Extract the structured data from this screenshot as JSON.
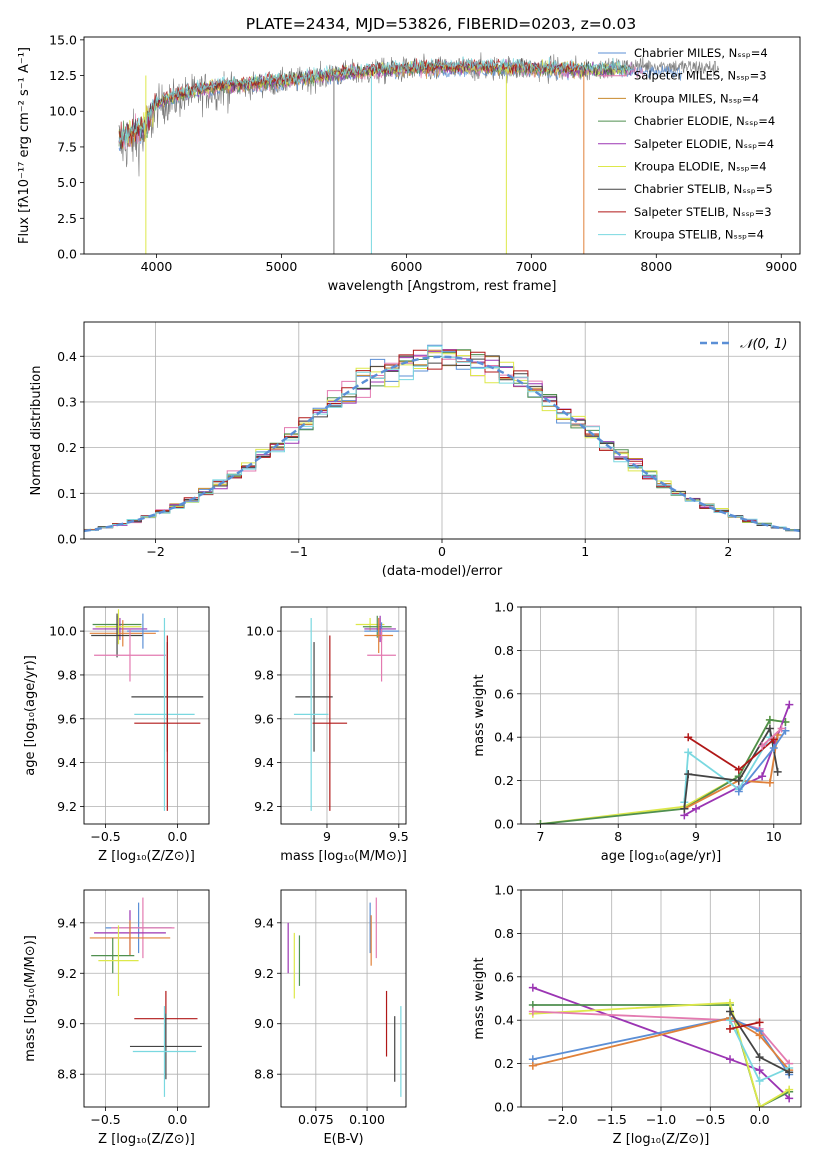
{
  "figure": {
    "title": "PLATE=2434, MJD=53826, FIBERID=0203, z=0.03"
  },
  "chart_data": [
    {
      "id": "spectrum",
      "type": "line",
      "title": "PLATE=2434, MJD=53826, FIBERID=0203, z=0.03",
      "xlabel": "wavelength [Angstrom, rest frame]",
      "ylabel": "Flux [fλ10⁻¹⁷ erg cm⁻² s⁻¹ A⁻¹]",
      "xlim": [
        3420,
        9150
      ],
      "ylim": [
        0,
        15.2
      ],
      "xticks": [
        4000,
        5000,
        6000,
        7000,
        8000,
        9000
      ],
      "yticks": [
        0.0,
        2.5,
        5.0,
        7.5,
        10.0,
        12.5,
        15.0
      ],
      "grid": false,
      "legend_position": "top-right",
      "series": [
        {
          "name": "Chabrier MILES, Nₛₛₚ=4",
          "color": "#5b8fd6"
        },
        {
          "name": "Salpeter MILES, Nₛₛₚ=3",
          "color": "#e37ab0"
        },
        {
          "name": "Kroupa MILES, Nₛₛₚ=4",
          "color": "#c8892d"
        },
        {
          "name": "Chabrier ELODIE, Nₛₛₚ=4",
          "color": "#4f8f4f"
        },
        {
          "name": "Salpeter ELODIE, Nₛₛₚ=4",
          "color": "#9b35b3"
        },
        {
          "name": "Kroupa ELODIE, Nₛₛₚ=4",
          "color": "#dde84a"
        },
        {
          "name": "Chabrier STELIB, Nₛₛₚ=5",
          "color": "#444444"
        },
        {
          "name": "Salpeter STELIB, Nₛₛₚ=3",
          "color": "#b01818"
        },
        {
          "name": "Kroupa STELIB, Nₛₛₚ=4",
          "color": "#7ad8e0"
        }
      ],
      "data_trend": [
        [
          3700,
          7.5
        ],
        [
          3900,
          8.2
        ],
        [
          4000,
          10.3
        ],
        [
          4200,
          11.0
        ],
        [
          4500,
          11.6
        ],
        [
          5000,
          12.0
        ],
        [
          5500,
          12.6
        ],
        [
          6000,
          12.9
        ],
        [
          6500,
          13.0
        ],
        [
          7000,
          13.0
        ],
        [
          7400,
          12.9
        ],
        [
          7800,
          13.2
        ],
        [
          8200,
          13.1
        ],
        [
          8500,
          13.0
        ]
      ],
      "model_trend": [
        [
          3700,
          8.2
        ],
        [
          3900,
          8.8
        ],
        [
          4000,
          10.6
        ],
        [
          4200,
          11.2
        ],
        [
          4500,
          11.8
        ],
        [
          5000,
          12.1
        ],
        [
          5500,
          12.7
        ],
        [
          6000,
          13.0
        ],
        [
          6500,
          13.1
        ],
        [
          7000,
          13.0
        ],
        [
          7400,
          12.9
        ]
      ],
      "drop_lines": [
        {
          "x": 3915,
          "color": "#dde84a"
        },
        {
          "x": 5420,
          "color": "#777777"
        },
        {
          "x": 5720,
          "color": "#7ad8e0"
        },
        {
          "x": 6800,
          "color": "#dde84a"
        },
        {
          "x": 7420,
          "color": "#e0813a"
        }
      ]
    },
    {
      "id": "residuals",
      "type": "line",
      "xlabel": "(data-model)/error",
      "ylabel": "Normed distribution",
      "xlim": [
        -2.5,
        2.5
      ],
      "ylim": [
        0,
        0.475
      ],
      "xticks": [
        -2,
        -1,
        0,
        1,
        2
      ],
      "yticks": [
        0.0,
        0.1,
        0.2,
        0.3,
        0.4
      ],
      "xticklabels": [
        "−2",
        "−1",
        "0",
        "1",
        "2"
      ],
      "grid": true,
      "legend_position": "top-right",
      "legend": "𝒩(0, 1)",
      "bin_width": 0.1,
      "hist_colors": [
        "#5b8fd6",
        "#e37ab0",
        "#c8892d",
        "#4f8f4f",
        "#9b35b3",
        "#dde84a",
        "#444444",
        "#b01818",
        "#7ad8e0"
      ]
    },
    {
      "id": "age_vs_Z",
      "type": "scatter",
      "xlabel": "Z [log₁₀(Z/Z⊙)]",
      "ylabel": "age  [log₁₀(age/yr)]",
      "xlim": [
        -0.65,
        0.22
      ],
      "ylim": [
        9.12,
        10.11
      ],
      "xticks": [
        -0.5,
        0.0
      ],
      "yticks": [
        9.2,
        9.4,
        9.6,
        9.8,
        10.0
      ],
      "xticklabels": [
        "−0.5",
        "0.0"
      ],
      "grid": true,
      "points": [
        {
          "x": -0.42,
          "y": 10.03,
          "xerr": 0.17,
          "yerr": 0.04,
          "color": "#4f8f4f"
        },
        {
          "x": -0.4,
          "y": 10.01,
          "xerr": 0.19,
          "yerr": 0.05,
          "color": "#9b35b3"
        },
        {
          "x": -0.38,
          "y": 9.99,
          "xerr": 0.23,
          "yerr": 0.06,
          "color": "#e0813a"
        },
        {
          "x": -0.41,
          "y": 10.02,
          "xerr": 0.16,
          "yerr": 0.08,
          "color": "#dde84a"
        },
        {
          "x": -0.42,
          "y": 9.98,
          "xerr": 0.18,
          "yerr": 0.1,
          "color": "#444444"
        },
        {
          "x": -0.24,
          "y": 10.0,
          "xerr": 0.11,
          "yerr": 0.08,
          "color": "#5b8fd6"
        },
        {
          "x": -0.33,
          "y": 9.89,
          "xerr": 0.25,
          "yerr": 0.12,
          "color": "#e37ab0"
        },
        {
          "x": -0.07,
          "y": 9.7,
          "xerr": 0.25,
          "yerr": 0.25,
          "color": "#444444"
        },
        {
          "x": -0.09,
          "y": 9.62,
          "xerr": 0.21,
          "yerr": 0.44,
          "color": "#7ad8e0"
        },
        {
          "x": -0.07,
          "y": 9.58,
          "xerr": 0.23,
          "yerr": 0.4,
          "color": "#b01818"
        }
      ]
    },
    {
      "id": "age_vs_mass",
      "type": "scatter",
      "xlabel": "mass [log₁₀(M/M⊙)]",
      "xlim": [
        8.68,
        9.55
      ],
      "ylim": [
        9.12,
        10.11
      ],
      "xticks": [
        9.0,
        9.5
      ],
      "yticks": [
        9.2,
        9.4,
        9.6,
        9.8,
        10.0
      ],
      "grid": true,
      "points": [
        {
          "x": 9.3,
          "y": 10.03,
          "xerr": 0.1,
          "yerr": 0.03,
          "color": "#dde84a"
        },
        {
          "x": 9.35,
          "y": 10.02,
          "xerr": 0.1,
          "yerr": 0.05,
          "color": "#4f8f4f"
        },
        {
          "x": 9.37,
          "y": 10.01,
          "xerr": 0.11,
          "yerr": 0.06,
          "color": "#9b35b3"
        },
        {
          "x": 9.38,
          "y": 10.0,
          "xerr": 0.12,
          "yerr": 0.04,
          "color": "#5b8fd6"
        },
        {
          "x": 9.36,
          "y": 9.98,
          "xerr": 0.1,
          "yerr": 0.08,
          "color": "#e0813a"
        },
        {
          "x": 9.38,
          "y": 9.89,
          "xerr": 0.1,
          "yerr": 0.12,
          "color": "#e37ab0"
        },
        {
          "x": 8.91,
          "y": 9.7,
          "xerr": 0.13,
          "yerr": 0.25,
          "color": "#444444"
        },
        {
          "x": 8.89,
          "y": 9.62,
          "xerr": 0.12,
          "yerr": 0.44,
          "color": "#7ad8e0"
        },
        {
          "x": 9.02,
          "y": 9.58,
          "xerr": 0.12,
          "yerr": 0.4,
          "color": "#b01818"
        }
      ]
    },
    {
      "id": "massweight_vs_age",
      "type": "line",
      "xlabel": "age  [log₁₀(age/yr)]",
      "ylabel": "mass weight",
      "xlim": [
        6.75,
        10.35
      ],
      "ylim": [
        0.0,
        1.0
      ],
      "xticks": [
        7,
        8,
        9,
        10
      ],
      "yticks": [
        0.0,
        0.2,
        0.4,
        0.6,
        0.8,
        1.0
      ],
      "grid": true,
      "series": [
        {
          "color": "#dde84a",
          "x": [
            7.0,
            8.85,
            9.55,
            9.95,
            10.15
          ],
          "y": [
            0.0,
            0.08,
            0.22,
            0.48,
            0.47
          ]
        },
        {
          "color": "#4f8f4f",
          "x": [
            7.0,
            8.85,
            9.55,
            9.95,
            10.15
          ],
          "y": [
            0.0,
            0.07,
            0.22,
            0.48,
            0.47
          ]
        },
        {
          "color": "#9b35b3",
          "x": [
            8.85,
            9.0,
            9.55,
            9.85,
            10.2
          ],
          "y": [
            0.04,
            0.07,
            0.17,
            0.22,
            0.55
          ]
        },
        {
          "color": "#e0813a",
          "x": [
            8.85,
            9.55,
            9.95,
            10.05
          ],
          "y": [
            0.07,
            0.2,
            0.19,
            0.41
          ]
        },
        {
          "color": "#7ad8e0",
          "x": [
            8.85,
            8.9,
            9.55,
            9.95
          ],
          "y": [
            0.1,
            0.33,
            0.16,
            0.4
          ]
        },
        {
          "color": "#444444",
          "x": [
            8.85,
            8.9,
            9.55,
            9.95,
            10.05
          ],
          "y": [
            0.07,
            0.23,
            0.2,
            0.44,
            0.24
          ]
        },
        {
          "color": "#b01818",
          "x": [
            8.9,
            9.55,
            10.0
          ],
          "y": [
            0.4,
            0.25,
            0.39
          ]
        },
        {
          "color": "#5b8fd6",
          "x": [
            9.55,
            10.0,
            10.15
          ],
          "y": [
            0.15,
            0.35,
            0.43
          ]
        },
        {
          "color": "#e37ab0",
          "x": [
            9.85,
            10.1
          ],
          "y": [
            0.36,
            0.44
          ]
        }
      ]
    },
    {
      "id": "mass_vs_Z",
      "type": "scatter",
      "xlabel": "Z [log₁₀(Z/Z⊙)]",
      "ylabel": "mass [log₁₀(M/M⊙)]",
      "xlim": [
        -0.65,
        0.22
      ],
      "ylim": [
        8.67,
        9.53
      ],
      "xticks": [
        -0.5,
        0.0
      ],
      "yticks": [
        8.8,
        9.0,
        9.2,
        9.4
      ],
      "xticklabels": [
        "−0.5",
        "0.0"
      ],
      "grid": true,
      "points": [
        {
          "x": -0.27,
          "y": 9.38,
          "xerr": 0.23,
          "yerr": 0.1,
          "color": "#5b8fd6"
        },
        {
          "x": -0.24,
          "y": 9.38,
          "xerr": 0.22,
          "yerr": 0.12,
          "color": "#e37ab0"
        },
        {
          "x": -0.33,
          "y": 9.36,
          "xerr": 0.25,
          "yerr": 0.09,
          "color": "#9b35b3"
        },
        {
          "x": -0.33,
          "y": 9.34,
          "xerr": 0.28,
          "yerr": 0.07,
          "color": "#e0813a"
        },
        {
          "x": -0.45,
          "y": 9.27,
          "xerr": 0.15,
          "yerr": 0.07,
          "color": "#4f8f4f"
        },
        {
          "x": -0.41,
          "y": 9.25,
          "xerr": 0.14,
          "yerr": 0.14,
          "color": "#dde84a"
        },
        {
          "x": -0.08,
          "y": 9.02,
          "xerr": 0.22,
          "yerr": 0.11,
          "color": "#b01818"
        },
        {
          "x": -0.08,
          "y": 8.91,
          "xerr": 0.25,
          "yerr": 0.13,
          "color": "#444444"
        },
        {
          "x": -0.09,
          "y": 8.89,
          "xerr": 0.22,
          "yerr": 0.18,
          "color": "#7ad8e0"
        }
      ]
    },
    {
      "id": "mass_vs_ebv",
      "type": "scatter",
      "xlabel": "E(B-V)",
      "xlim": [
        0.058,
        0.119
      ],
      "ylim": [
        8.67,
        9.53
      ],
      "xticks": [
        0.075,
        0.1
      ],
      "yticks": [
        8.8,
        9.0,
        9.2,
        9.4
      ],
      "xticklabels": [
        "0.075",
        "0.100"
      ],
      "grid": true,
      "points": [
        {
          "x": 0.0615,
          "y": 9.3,
          "yerr": 0.1,
          "color": "#9b35b3"
        },
        {
          "x": 0.0645,
          "y": 9.23,
          "yerr": 0.13,
          "color": "#dde84a"
        },
        {
          "x": 0.067,
          "y": 9.25,
          "yerr": 0.1,
          "color": "#4f8f4f"
        },
        {
          "x": 0.1015,
          "y": 9.38,
          "yerr": 0.1,
          "color": "#5b8fd6"
        },
        {
          "x": 0.102,
          "y": 9.33,
          "yerr": 0.1,
          "color": "#e0813a"
        },
        {
          "x": 0.1045,
          "y": 9.38,
          "yerr": 0.12,
          "color": "#e37ab0"
        },
        {
          "x": 0.1095,
          "y": 9.0,
          "yerr": 0.13,
          "color": "#b01818"
        },
        {
          "x": 0.1135,
          "y": 8.9,
          "yerr": 0.13,
          "color": "#444444"
        },
        {
          "x": 0.1165,
          "y": 8.89,
          "yerr": 0.18,
          "color": "#7ad8e0"
        }
      ]
    },
    {
      "id": "massweight_vs_Z",
      "type": "line",
      "xlabel": "Z [log₁₀(Z/Z⊙)]",
      "ylabel": "mass weight",
      "xlim": [
        -2.42,
        0.42
      ],
      "ylim": [
        0.0,
        1.0
      ],
      "xticks": [
        -2.0,
        -1.5,
        -1.0,
        -0.5,
        0.0
      ],
      "yticks": [
        0.0,
        0.2,
        0.4,
        0.6,
        0.8,
        1.0
      ],
      "xticklabels": [
        "−2.0",
        "−1.5",
        "−1.0",
        "−0.5",
        "0.0"
      ],
      "grid": true,
      "series": [
        {
          "color": "#9b35b3",
          "x": [
            -2.3,
            -0.3,
            0.0,
            0.3
          ],
          "y": [
            0.55,
            0.22,
            0.17,
            0.04
          ]
        },
        {
          "color": "#4f8f4f",
          "x": [
            -2.3,
            -0.3,
            0.0,
            0.3
          ],
          "y": [
            0.47,
            0.47,
            0.0,
            0.07
          ]
        },
        {
          "color": "#dde84a",
          "x": [
            -2.3,
            -0.3,
            0.0,
            0.3
          ],
          "y": [
            0.43,
            0.48,
            0.0,
            0.08
          ]
        },
        {
          "color": "#e37ab0",
          "x": [
            -2.3,
            -0.3,
            0.0,
            0.3
          ],
          "y": [
            0.44,
            0.4,
            0.36,
            0.2
          ]
        },
        {
          "color": "#5b8fd6",
          "x": [
            -2.3,
            -0.3,
            0.0,
            0.3
          ],
          "y": [
            0.22,
            0.41,
            0.35,
            0.15
          ]
        },
        {
          "color": "#e0813a",
          "x": [
            -2.3,
            -0.3,
            0.0,
            0.3
          ],
          "y": [
            0.19,
            0.41,
            0.33,
            0.17
          ]
        },
        {
          "color": "#7ad8e0",
          "x": [
            -0.3,
            0.0,
            0.3
          ],
          "y": [
            0.4,
            0.12,
            0.18
          ]
        },
        {
          "color": "#444444",
          "x": [
            -0.3,
            0.0,
            0.3
          ],
          "y": [
            0.44,
            0.23,
            0.16
          ]
        },
        {
          "color": "#b01818",
          "x": [
            -0.3,
            0.0
          ],
          "y": [
            0.36,
            0.39
          ]
        }
      ]
    }
  ]
}
